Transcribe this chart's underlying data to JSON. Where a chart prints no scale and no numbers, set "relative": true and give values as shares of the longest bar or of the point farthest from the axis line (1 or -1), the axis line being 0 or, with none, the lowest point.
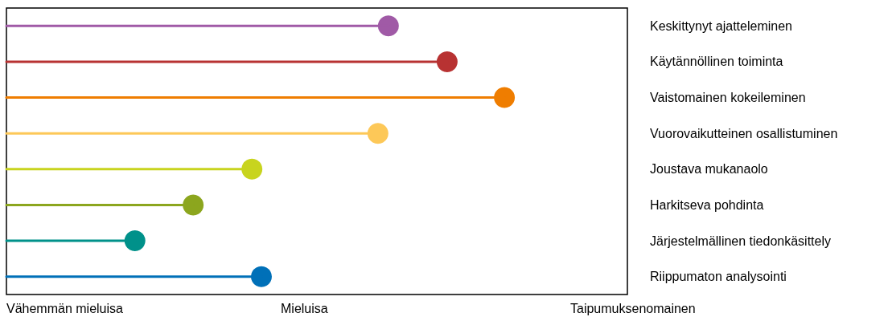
{
  "chart_data": {
    "type": "lollipop",
    "orientation": "horizontal",
    "relative": true,
    "categories": [
      "Keskittynyt ajatteleminen",
      "Käytännöllinen toiminta",
      "Vaistomainen kokeileminen",
      "Vuorovaikutteinen osallistuminen",
      "Joustava mukanaolo",
      "Harkitseva pohdinta",
      "Järjestelmällinen tiedonkäsittely",
      "Riippumaton analysointi"
    ],
    "values": [
      0.767,
      0.885,
      1,
      0.746,
      0.493,
      0.375,
      0.258,
      0.512
    ],
    "colors": [
      "#a05aa6",
      "#b83232",
      "#ef7d00",
      "#fdc858",
      "#c8d41e",
      "#8ca61e",
      "#00918a",
      "#0070b8"
    ],
    "marker": "circle",
    "annotations": [
      "Vähemmän mieluisa",
      "Mieluisa",
      "Taipumuksenomainen"
    ]
  }
}
